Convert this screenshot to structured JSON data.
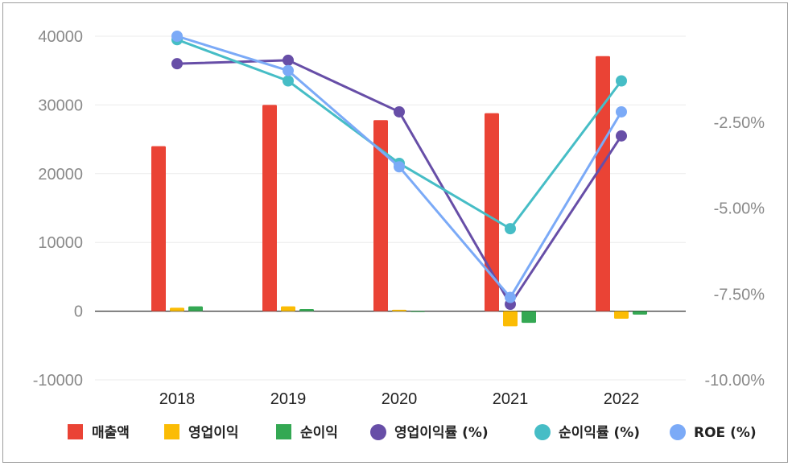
{
  "chart_data": {
    "type": "bar",
    "title": "",
    "categories": [
      "2018",
      "2019",
      "2020",
      "2021",
      "2022"
    ],
    "y_left": {
      "ylim": [
        -10000,
        40000
      ],
      "ticks": [
        "40000",
        "30000",
        "20000",
        "10000",
        "0",
        "-10000"
      ]
    },
    "y_right": {
      "ylim": [
        -10,
        0
      ],
      "ticks": [
        "-2.50%",
        "-5.00%",
        "-7.50%",
        "-10.00%"
      ]
    },
    "bar_series": [
      {
        "name": "매출액",
        "color": "#ea4335",
        "values": [
          24000,
          30000,
          27800,
          28800,
          37100
        ]
      },
      {
        "name": "영업이익",
        "color": "#fbbc04",
        "values": [
          500,
          700,
          200,
          -2200,
          -1100
        ]
      },
      {
        "name": "순이익",
        "color": "#34a853",
        "values": [
          700,
          300,
          -100,
          -1700,
          -500
        ]
      }
    ],
    "line_series": [
      {
        "name": "영업이익률 (%)",
        "color": "#674ea7",
        "values": [
          -0.8,
          -0.7,
          -2.2,
          -7.8,
          -2.9
        ]
      },
      {
        "name": "순이익률 (%)",
        "color": "#46bdc6",
        "values": [
          -0.1,
          -1.3,
          -3.7,
          -5.6,
          -1.3
        ]
      },
      {
        "name": "ROE (%)",
        "color": "#7baaf7",
        "values": [
          0.0,
          -1.0,
          -3.8,
          -7.6,
          -2.2
        ]
      }
    ],
    "grid": true,
    "legend_position": "bottom"
  }
}
